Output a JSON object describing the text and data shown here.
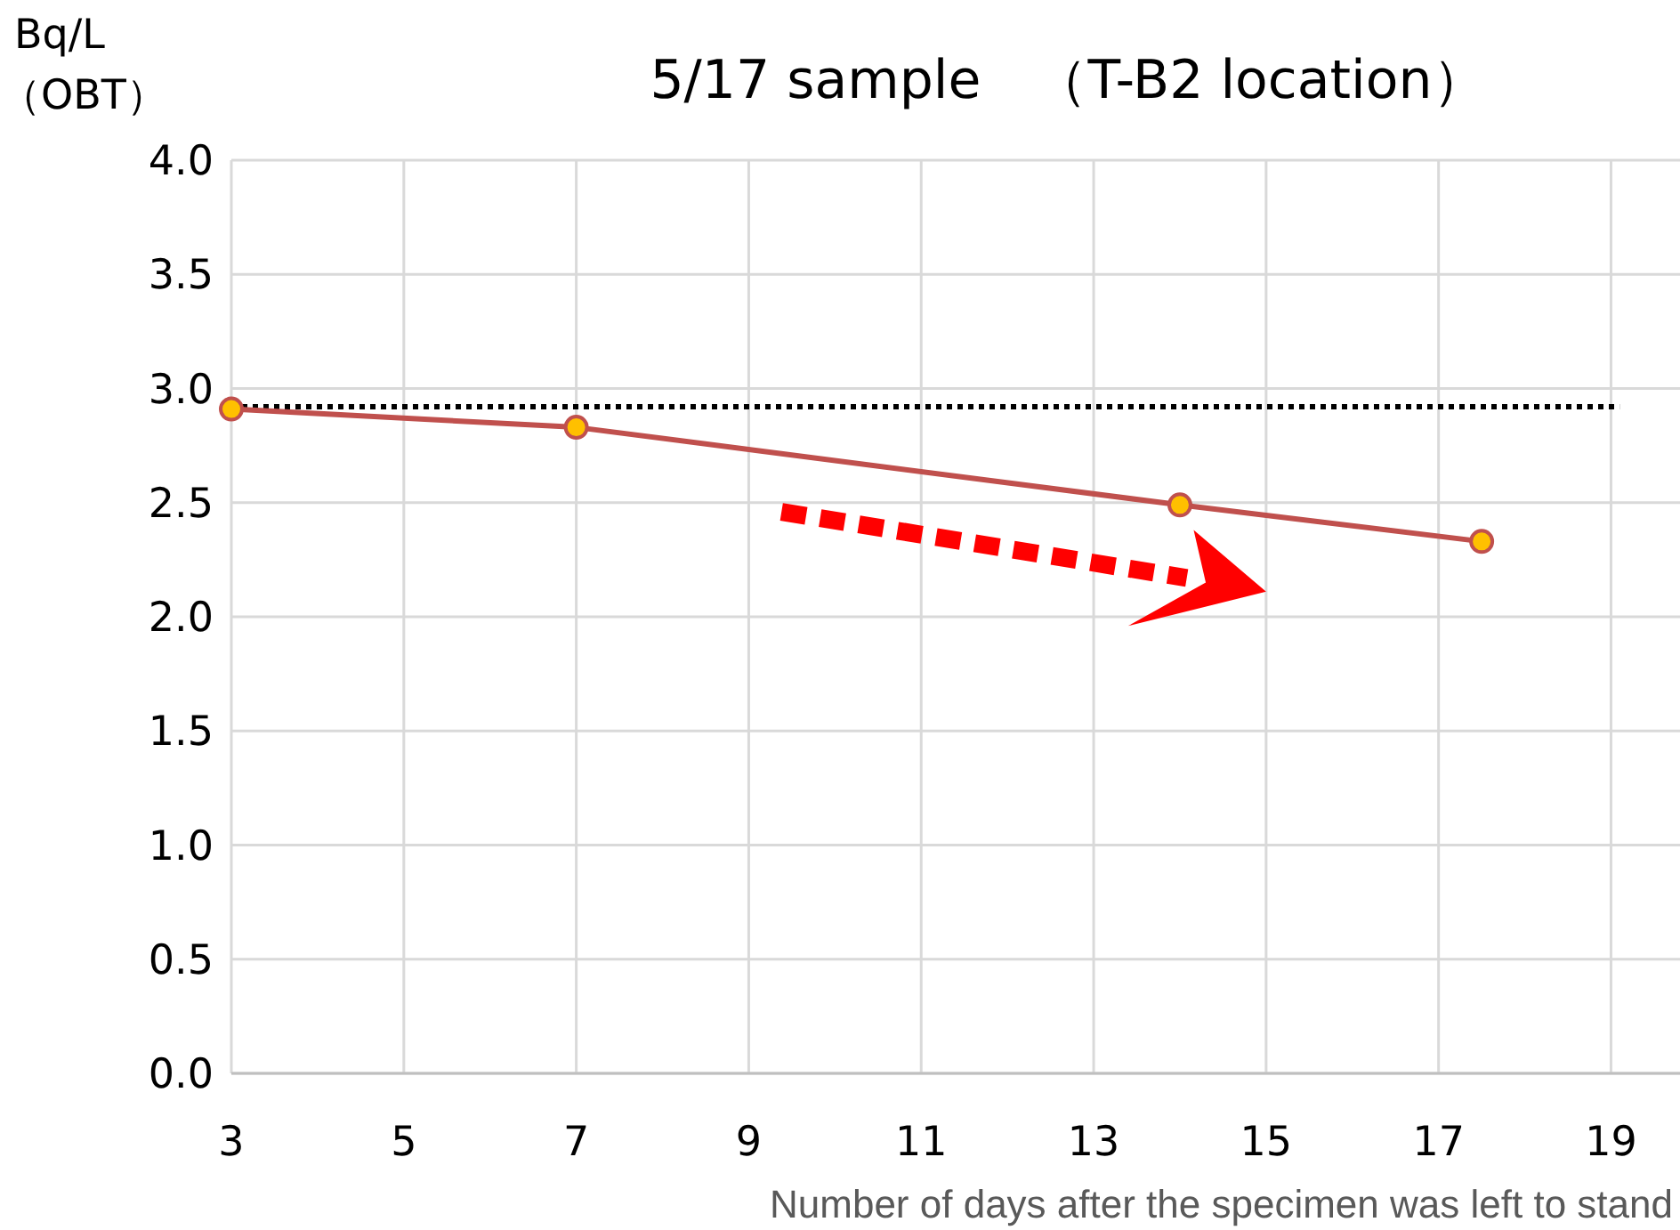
{
  "chart_data": {
    "type": "line",
    "title": "5/17 sample　（T-B2 location）",
    "xlabel": "Number of days after the specimen was left to stand",
    "ylabel": "Bq/L\n（OBT）",
    "x": [
      3,
      7,
      14,
      17.5
    ],
    "series": [
      {
        "color": "#c0504d",
        "values": [
          2.91,
          2.83,
          2.49,
          2.33
        ]
      }
    ],
    "xlim": [
      3,
      19.8
    ],
    "xticks": [
      3,
      5,
      7,
      9,
      11,
      13,
      15,
      17,
      19
    ],
    "ylim": [
      0,
      4
    ],
    "yticks": [
      {
        "value": 0,
        "label": "0.0"
      },
      {
        "value": 0.5,
        "label": "0.5"
      },
      {
        "value": 1,
        "label": "1.0"
      },
      {
        "value": 1.5,
        "label": "1.5"
      },
      {
        "value": 2,
        "label": "2.0"
      },
      {
        "value": 2.5,
        "label": "2.5"
      },
      {
        "value": 3,
        "label": "3.0"
      },
      {
        "value": 3.5,
        "label": "3.5"
      },
      {
        "value": 4,
        "label": "4.0"
      }
    ],
    "grid": true,
    "marker": "circle",
    "ref_lines": [
      {
        "axis": "y",
        "value": 2.92,
        "color": "#000000",
        "line_style": "dotted"
      }
    ]
  }
}
